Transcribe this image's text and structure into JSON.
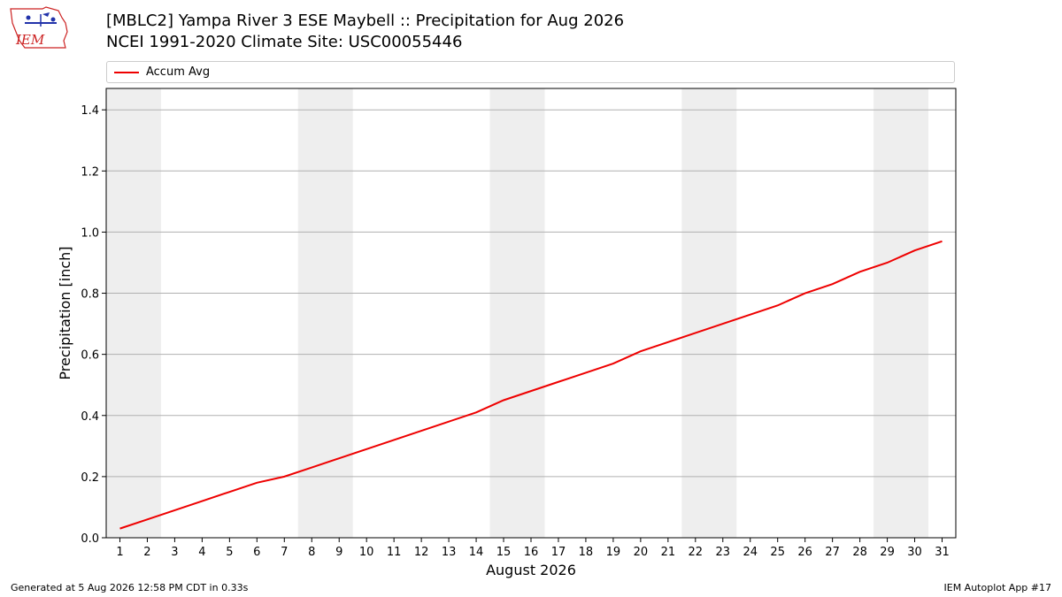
{
  "header": {
    "title_line1": "[MBLC2] Yampa River 3 ESE Maybell :: Precipitation for Aug 2026",
    "title_line2": "NCEI 1991-2020 Climate Site: USC00055446",
    "logo_text": "IEM"
  },
  "colors": {
    "series": "#ee0000",
    "weekend_band": "#eeeeee",
    "grid": "#b0b0b0"
  },
  "chart_data": {
    "type": "line",
    "title": "[MBLC2] Yampa River 3 ESE Maybell :: Precipitation for Aug 2026",
    "subtitle": "NCEI 1991-2020 Climate Site: USC00055446",
    "xlabel": "August 2026",
    "ylabel": "Precipitation [inch]",
    "xlim": [
      0.5,
      31.5
    ],
    "ylim": [
      0.0,
      1.47
    ],
    "yticks": [
      0.0,
      0.2,
      0.4,
      0.6,
      0.8,
      1.0,
      1.2,
      1.4
    ],
    "ytick_labels": [
      "0.0",
      "0.2",
      "0.4",
      "0.6",
      "0.8",
      "1.0",
      "1.2",
      "1.4"
    ],
    "grid": "horizontal",
    "legend_position": "top",
    "weekend_bands": [
      [
        0.5,
        2.5
      ],
      [
        7.5,
        9.5
      ],
      [
        14.5,
        16.5
      ],
      [
        21.5,
        23.5
      ],
      [
        28.5,
        30.5
      ]
    ],
    "x": [
      1,
      2,
      3,
      4,
      5,
      6,
      7,
      8,
      9,
      10,
      11,
      12,
      13,
      14,
      15,
      16,
      17,
      18,
      19,
      20,
      21,
      22,
      23,
      24,
      25,
      26,
      27,
      28,
      29,
      30,
      31
    ],
    "series": [
      {
        "name": "Accum Avg",
        "color": "#ee0000",
        "values": [
          0.03,
          0.06,
          0.09,
          0.12,
          0.15,
          0.18,
          0.2,
          0.23,
          0.26,
          0.29,
          0.32,
          0.35,
          0.38,
          0.41,
          0.45,
          0.48,
          0.51,
          0.54,
          0.57,
          0.61,
          0.64,
          0.67,
          0.7,
          0.73,
          0.76,
          0.8,
          0.83,
          0.87,
          0.9,
          0.94,
          0.97
        ]
      }
    ]
  },
  "footer": {
    "left": "Generated at 5 Aug 2026 12:58 PM CDT in 0.33s",
    "right": "IEM Autoplot App #17"
  }
}
